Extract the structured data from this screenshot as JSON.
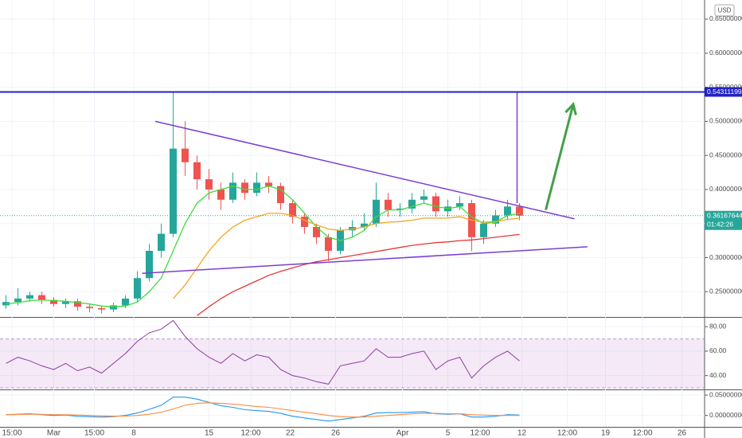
{
  "chart_data": {
    "type": "candlestick",
    "currency": "USD",
    "xlim": [
      -0.5,
      58.5
    ],
    "xticks": [
      {
        "value": 0.5,
        "label": "15:00"
      },
      {
        "value": 4,
        "label": "Mar"
      },
      {
        "value": 7.4,
        "label": "15:00"
      },
      {
        "value": 10.7,
        "label": "8"
      },
      {
        "value": 17,
        "label": "15"
      },
      {
        "value": 20.5,
        "label": "12:00"
      },
      {
        "value": 23.8,
        "label": "22"
      },
      {
        "value": 27.6,
        "label": "26"
      },
      {
        "value": 33.2,
        "label": "Apr"
      },
      {
        "value": 37,
        "label": "5"
      },
      {
        "value": 39.7,
        "label": "12:00"
      },
      {
        "value": 43.2,
        "label": "12"
      },
      {
        "value": 47,
        "label": "12:00"
      },
      {
        "value": 50.2,
        "label": "19"
      },
      {
        "value": 53.3,
        "label": "12:00"
      },
      {
        "value": 56.6,
        "label": "26"
      }
    ],
    "price": {
      "ylim": [
        0.213,
        0.678
      ],
      "yticks": [
        {
          "value": 0.25,
          "label": "0.25000000"
        },
        {
          "value": 0.3,
          "label": "0.30000000"
        },
        {
          "value": 0.35,
          "label": "0.35000000"
        },
        {
          "value": 0.4,
          "label": "0.40000000"
        },
        {
          "value": 0.45,
          "label": "0.45000000"
        },
        {
          "value": 0.5,
          "label": "0.50000000"
        },
        {
          "value": 0.55,
          "label": "0.55000000"
        },
        {
          "value": 0.6,
          "label": "0.60000000"
        },
        {
          "value": 0.65,
          "label": "0.65000000"
        }
      ],
      "up_color": "#26a69a",
      "down_color": "#ef5350",
      "open": [
        0.23,
        0.235,
        0.24,
        0.245,
        0.238,
        0.232,
        0.236,
        0.228,
        0.226,
        0.224,
        0.23,
        0.24,
        0.27,
        0.31,
        0.335,
        0.46,
        0.44,
        0.415,
        0.4,
        0.385,
        0.41,
        0.395,
        0.41,
        0.405,
        0.38,
        0.36,
        0.345,
        0.33,
        0.31,
        0.34,
        0.345,
        0.35,
        0.385,
        0.37,
        0.372,
        0.385,
        0.39,
        0.368,
        0.375,
        0.38,
        0.33,
        0.35,
        0.362,
        0.375
      ],
      "high": [
        0.245,
        0.255,
        0.25,
        0.25,
        0.242,
        0.24,
        0.24,
        0.232,
        0.23,
        0.234,
        0.245,
        0.28,
        0.32,
        0.35,
        0.543,
        0.5,
        0.45,
        0.43,
        0.41,
        0.425,
        0.415,
        0.425,
        0.42,
        0.41,
        0.385,
        0.365,
        0.35,
        0.335,
        0.345,
        0.355,
        0.365,
        0.41,
        0.395,
        0.38,
        0.395,
        0.4,
        0.395,
        0.385,
        0.39,
        0.385,
        0.355,
        0.37,
        0.385,
        0.38
      ],
      "low": [
        0.225,
        0.23,
        0.235,
        0.232,
        0.228,
        0.226,
        0.222,
        0.22,
        0.218,
        0.22,
        0.226,
        0.235,
        0.265,
        0.3,
        0.33,
        0.42,
        0.4,
        0.385,
        0.37,
        0.38,
        0.385,
        0.39,
        0.395,
        0.37,
        0.35,
        0.335,
        0.32,
        0.295,
        0.305,
        0.33,
        0.34,
        0.345,
        0.36,
        0.36,
        0.365,
        0.38,
        0.36,
        0.36,
        0.37,
        0.31,
        0.32,
        0.345,
        0.355,
        0.355
      ],
      "close": [
        0.235,
        0.24,
        0.245,
        0.238,
        0.232,
        0.236,
        0.228,
        0.226,
        0.224,
        0.23,
        0.24,
        0.27,
        0.31,
        0.335,
        0.46,
        0.44,
        0.415,
        0.4,
        0.385,
        0.41,
        0.395,
        0.41,
        0.405,
        0.38,
        0.36,
        0.345,
        0.33,
        0.31,
        0.34,
        0.345,
        0.35,
        0.385,
        0.37,
        0.372,
        0.385,
        0.39,
        0.368,
        0.375,
        0.38,
        0.33,
        0.35,
        0.362,
        0.375,
        0.3617
      ],
      "overlays": [
        {
          "color": "#3ddc3d",
          "values": [
            0.232,
            0.234,
            0.237,
            0.238,
            0.237,
            0.236,
            0.234,
            0.232,
            0.229,
            0.228,
            0.229,
            0.235,
            0.25,
            0.27,
            0.31,
            0.35,
            0.38,
            0.395,
            0.4,
            0.405,
            0.4,
            0.4,
            0.405,
            0.4,
            0.385,
            0.365,
            0.345,
            0.33,
            0.325,
            0.33,
            0.34,
            0.36,
            0.37,
            0.37,
            0.375,
            0.38,
            0.375,
            0.372,
            0.375,
            0.36,
            0.35,
            0.352,
            0.362,
            0.365
          ]
        },
        {
          "color": "#f5a623",
          "values": [
            null,
            null,
            null,
            null,
            null,
            null,
            null,
            null,
            null,
            null,
            null,
            null,
            null,
            null,
            0.24,
            0.26,
            0.285,
            0.31,
            0.33,
            0.345,
            0.355,
            0.36,
            0.365,
            0.365,
            0.362,
            0.355,
            0.348,
            0.342,
            0.34,
            0.342,
            0.345,
            0.35,
            0.352,
            0.353,
            0.355,
            0.358,
            0.358,
            0.358,
            0.36,
            0.355,
            0.352,
            0.353,
            0.356,
            0.358
          ]
        },
        {
          "color": "#e53935",
          "values": [
            null,
            null,
            null,
            null,
            null,
            null,
            null,
            null,
            null,
            null,
            null,
            null,
            null,
            null,
            null,
            null,
            0.215,
            0.228,
            0.24,
            0.25,
            0.258,
            0.266,
            0.274,
            0.28,
            0.285,
            0.29,
            0.294,
            0.297,
            0.3,
            0.303,
            0.306,
            0.309,
            0.312,
            0.315,
            0.318,
            0.32,
            0.322,
            0.323,
            0.325,
            0.326,
            0.328,
            0.33,
            0.332,
            0.334
          ]
        }
      ],
      "resistance": {
        "value": 0.54311199,
        "color": "#2121c8"
      },
      "last_price": 0.36167644,
      "countdown": "01:42:26",
      "trend_lines": [
        {
          "color": "#7b3fd1",
          "points": [
            [
              12.5,
              0.5
            ],
            [
              47.6,
              0.357
            ]
          ]
        },
        {
          "color": "#7b3fd1",
          "points": [
            [
              11.4,
              0.277
            ],
            [
              48.7,
              0.316
            ]
          ]
        },
        {
          "color": "#7b3fd1",
          "points": [
            [
              42.8,
              0.54311199
            ],
            [
              42.8,
              0.38
            ]
          ]
        }
      ],
      "arrow": {
        "color": "#43a047",
        "points": [
          [
            45.2,
            0.37
          ],
          [
            47.5,
            0.525
          ]
        ]
      }
    },
    "rsi": {
      "ylim": [
        28.7,
        87.3
      ],
      "yticks": [
        {
          "value": 40,
          "label": "40.00"
        },
        {
          "value": 60,
          "label": "60.00"
        },
        {
          "value": 80,
          "label": "80.00"
        }
      ],
      "band": [
        30,
        70
      ],
      "color": "#8e3b9e",
      "values": [
        50,
        55,
        52,
        48,
        45,
        50,
        44,
        47,
        42,
        50,
        58,
        68,
        75,
        78,
        85,
        72,
        62,
        55,
        50,
        58,
        52,
        57,
        55,
        45,
        40,
        38,
        35,
        33,
        48,
        50,
        52,
        62,
        55,
        55,
        58,
        60,
        45,
        52,
        55,
        38,
        48,
        55,
        60,
        52
      ]
    },
    "macd": {
      "ylim": [
        -0.028,
        0.062
      ],
      "yticks": [
        {
          "value": 0,
          "label": "0.00000000"
        },
        {
          "value": 0.05,
          "label": "0.05000000"
        }
      ],
      "series": [
        {
          "color": "#2196f3",
          "values": [
            0.002,
            0.003,
            0.004,
            0.002,
            0,
            0.001,
            -0.002,
            -0.003,
            -0.004,
            -0.003,
            0,
            0.006,
            0.015,
            0.025,
            0.045,
            0.045,
            0.04,
            0.032,
            0.024,
            0.02,
            0.014,
            0.012,
            0.01,
            0.005,
            -0.002,
            -0.006,
            -0.01,
            -0.014,
            -0.01,
            -0.006,
            -0.002,
            0.006,
            0.007,
            0.007,
            0.008,
            0.009,
            0.004,
            0.003,
            0.004,
            -0.004,
            -0.004,
            -0.002,
            0.002,
            0.001
          ]
        },
        {
          "color": "#ff8a3d",
          "values": [
            0.002,
            0.0025,
            0.003,
            0.0028,
            0.002,
            0.0018,
            0.001,
            0,
            -0.001,
            -0.0018,
            -0.0015,
            0,
            0.003,
            0.008,
            0.016,
            0.025,
            0.03,
            0.031,
            0.03,
            0.028,
            0.025,
            0.022,
            0.02,
            0.016,
            0.012,
            0.008,
            0.004,
            0,
            -0.003,
            -0.004,
            -0.004,
            -0.002,
            0,
            0.002,
            0.004,
            0.005,
            0.005,
            0.004,
            0.004,
            0.002,
            0.001,
            0,
            0,
            0
          ]
        }
      ]
    }
  }
}
